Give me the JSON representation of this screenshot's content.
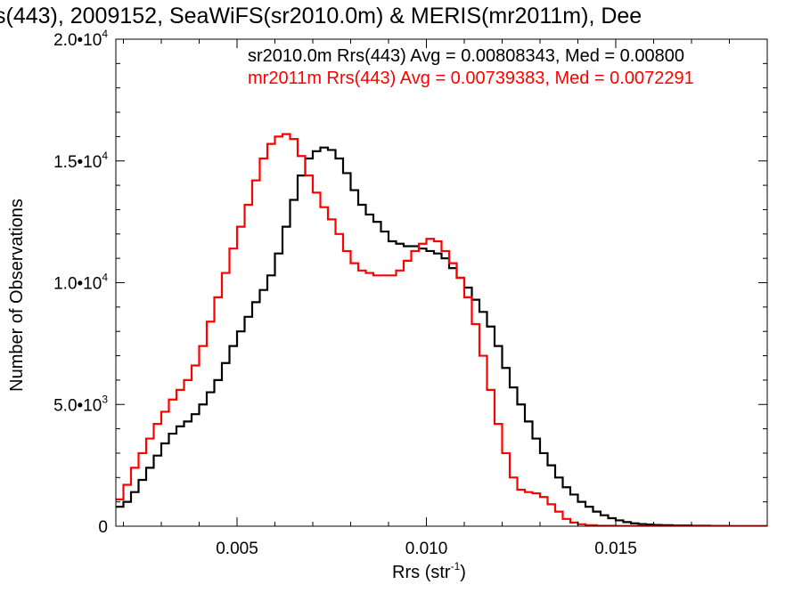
{
  "chart_data": {
    "type": "histogram-step",
    "title": "s(443), 2009152, SeaWiFS(sr2010.0m) & MERIS(mr2011m), Dee",
    "xlabel": {
      "main": "Rrs (str",
      "sup": "-1",
      "tail": ")"
    },
    "ylabel": "Number of Observations",
    "xlim": [
      0.0018,
      0.019
    ],
    "ylim": [
      0,
      20000
    ],
    "x_ticks": [
      {
        "value": 0.005,
        "label": "0.005"
      },
      {
        "value": 0.01,
        "label": "0.010"
      },
      {
        "value": 0.015,
        "label": "0.015"
      }
    ],
    "y_ticks": [
      {
        "value": 0,
        "mant": "0",
        "exp": ""
      },
      {
        "value": 5000,
        "mant": "5.0•10",
        "exp": "3"
      },
      {
        "value": 10000,
        "mant": "1.0•10",
        "exp": "4"
      },
      {
        "value": 15000,
        "mant": "1.5•10",
        "exp": "4"
      },
      {
        "value": 20000,
        "mant": "2.0•10",
        "exp": "4"
      }
    ],
    "series": [
      {
        "name": "sr2010.0m",
        "legend": "sr2010.0m Rrs(443) Avg = 0.00808343, Med = 0.00800",
        "color": "#000000",
        "points": [
          [
            0.0018,
            800
          ],
          [
            0.002,
            1000
          ],
          [
            0.0022,
            1400
          ],
          [
            0.0024,
            1900
          ],
          [
            0.0026,
            2400
          ],
          [
            0.0028,
            2900
          ],
          [
            0.003,
            3400
          ],
          [
            0.0032,
            3800
          ],
          [
            0.0034,
            4100
          ],
          [
            0.0036,
            4300
          ],
          [
            0.0038,
            4600
          ],
          [
            0.004,
            5000
          ],
          [
            0.0042,
            5500
          ],
          [
            0.0044,
            6000
          ],
          [
            0.0046,
            6700
          ],
          [
            0.0048,
            7400
          ],
          [
            0.005,
            8000
          ],
          [
            0.0052,
            8600
          ],
          [
            0.0054,
            9200
          ],
          [
            0.0056,
            9700
          ],
          [
            0.0058,
            10300
          ],
          [
            0.006,
            11200
          ],
          [
            0.0062,
            12300
          ],
          [
            0.0064,
            13400
          ],
          [
            0.0066,
            14400
          ],
          [
            0.0068,
            15100
          ],
          [
            0.007,
            15400
          ],
          [
            0.0072,
            15550
          ],
          [
            0.0074,
            15450
          ],
          [
            0.0076,
            15100
          ],
          [
            0.0078,
            14500
          ],
          [
            0.008,
            13800
          ],
          [
            0.0082,
            13200
          ],
          [
            0.0084,
            12800
          ],
          [
            0.0086,
            12500
          ],
          [
            0.0088,
            12100
          ],
          [
            0.009,
            11700
          ],
          [
            0.0092,
            11600
          ],
          [
            0.0094,
            11500
          ],
          [
            0.0096,
            11500
          ],
          [
            0.0098,
            11400
          ],
          [
            0.01,
            11300
          ],
          [
            0.0102,
            11200
          ],
          [
            0.0104,
            11000
          ],
          [
            0.0106,
            10600
          ],
          [
            0.0108,
            10200
          ],
          [
            0.011,
            9800
          ],
          [
            0.0112,
            9300
          ],
          [
            0.0114,
            8800
          ],
          [
            0.0116,
            8200
          ],
          [
            0.0118,
            7400
          ],
          [
            0.012,
            6500
          ],
          [
            0.0122,
            5700
          ],
          [
            0.0124,
            5000
          ],
          [
            0.0126,
            4300
          ],
          [
            0.0128,
            3600
          ],
          [
            0.013,
            3000
          ],
          [
            0.0132,
            2500
          ],
          [
            0.0134,
            2000
          ],
          [
            0.0136,
            1600
          ],
          [
            0.0138,
            1300
          ],
          [
            0.014,
            1000
          ],
          [
            0.0142,
            800
          ],
          [
            0.0144,
            600
          ],
          [
            0.0146,
            450
          ],
          [
            0.0148,
            330
          ],
          [
            0.015,
            240
          ],
          [
            0.0152,
            170
          ],
          [
            0.0154,
            120
          ],
          [
            0.0156,
            90
          ],
          [
            0.0158,
            70
          ],
          [
            0.016,
            50
          ],
          [
            0.0162,
            40
          ],
          [
            0.0165,
            30
          ],
          [
            0.017,
            20
          ],
          [
            0.0175,
            12
          ],
          [
            0.018,
            6
          ],
          [
            0.019,
            0
          ]
        ]
      },
      {
        "name": "mr2011m",
        "legend": "mr2011m Rrs(443) Avg = 0.00739383, Med = 0.0072291",
        "color": "#ff0000",
        "points": [
          [
            0.0018,
            1100
          ],
          [
            0.002,
            1700
          ],
          [
            0.0022,
            2400
          ],
          [
            0.0024,
            3000
          ],
          [
            0.0026,
            3600
          ],
          [
            0.0028,
            4200
          ],
          [
            0.003,
            4700
          ],
          [
            0.0032,
            5200
          ],
          [
            0.0034,
            5600
          ],
          [
            0.0036,
            6000
          ],
          [
            0.0038,
            6600
          ],
          [
            0.004,
            7400
          ],
          [
            0.0042,
            8400
          ],
          [
            0.0044,
            9400
          ],
          [
            0.0046,
            10400
          ],
          [
            0.0048,
            11400
          ],
          [
            0.005,
            12300
          ],
          [
            0.0052,
            13200
          ],
          [
            0.0054,
            14200
          ],
          [
            0.0056,
            15100
          ],
          [
            0.0058,
            15700
          ],
          [
            0.006,
            16000
          ],
          [
            0.0062,
            16100
          ],
          [
            0.0064,
            15900
          ],
          [
            0.0066,
            15200
          ],
          [
            0.0068,
            14400
          ],
          [
            0.007,
            13700
          ],
          [
            0.0072,
            13100
          ],
          [
            0.0074,
            12600
          ],
          [
            0.0076,
            12000
          ],
          [
            0.0078,
            11300
          ],
          [
            0.008,
            10800
          ],
          [
            0.0082,
            10500
          ],
          [
            0.0084,
            10400
          ],
          [
            0.0086,
            10300
          ],
          [
            0.0088,
            10300
          ],
          [
            0.009,
            10300
          ],
          [
            0.0092,
            10500
          ],
          [
            0.0094,
            10900
          ],
          [
            0.0096,
            11300
          ],
          [
            0.0098,
            11600
          ],
          [
            0.01,
            11800
          ],
          [
            0.0102,
            11700
          ],
          [
            0.0104,
            11300
          ],
          [
            0.0106,
            10800
          ],
          [
            0.0108,
            10200
          ],
          [
            0.011,
            9400
          ],
          [
            0.0112,
            8300
          ],
          [
            0.0114,
            7000
          ],
          [
            0.0116,
            5600
          ],
          [
            0.0118,
            4200
          ],
          [
            0.012,
            3000
          ],
          [
            0.0122,
            2000
          ],
          [
            0.0124,
            1500
          ],
          [
            0.0126,
            1400
          ],
          [
            0.0128,
            1350
          ],
          [
            0.013,
            1200
          ],
          [
            0.0132,
            900
          ],
          [
            0.0134,
            600
          ],
          [
            0.0136,
            300
          ],
          [
            0.0138,
            150
          ],
          [
            0.014,
            80
          ],
          [
            0.0142,
            40
          ],
          [
            0.0145,
            20
          ],
          [
            0.015,
            8
          ],
          [
            0.016,
            2
          ],
          [
            0.019,
            0
          ]
        ]
      }
    ]
  }
}
